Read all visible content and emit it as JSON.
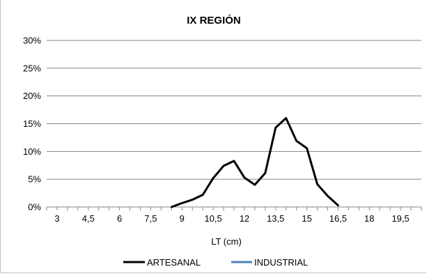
{
  "chart_data": {
    "type": "line",
    "title": "IX REGIÓN",
    "xlabel": "LT (cm)",
    "ylabel": "",
    "x_tick_labels": [
      "3",
      "4,5",
      "6",
      "7,5",
      "9",
      "10,5",
      "12",
      "13,5",
      "15",
      "16,5",
      "18",
      "19,5"
    ],
    "y_tick_labels": [
      "0%",
      "5%",
      "10%",
      "15%",
      "20%",
      "25%",
      "30%"
    ],
    "x_range": [
      2.5,
      20.5
    ],
    "ylim": [
      0,
      30
    ],
    "y_grid": true,
    "legend_position": "bottom",
    "series": [
      {
        "name": "ARTESANAL",
        "color": "#000000",
        "x": [
          8.5,
          9,
          9.5,
          10,
          10.5,
          11,
          11.5,
          12,
          12.5,
          13,
          13.5,
          14,
          14.5,
          15,
          15.5,
          16,
          16.5
        ],
        "values": [
          0.0,
          0.7,
          1.3,
          2.2,
          5.2,
          7.4,
          8.3,
          5.3,
          4.0,
          6.1,
          14.3,
          16.0,
          11.9,
          10.6,
          4.1,
          2.0,
          0.3
        ]
      },
      {
        "name": "INDUSTRIAL",
        "color": "#4f81bd",
        "x": [],
        "values": []
      }
    ]
  }
}
